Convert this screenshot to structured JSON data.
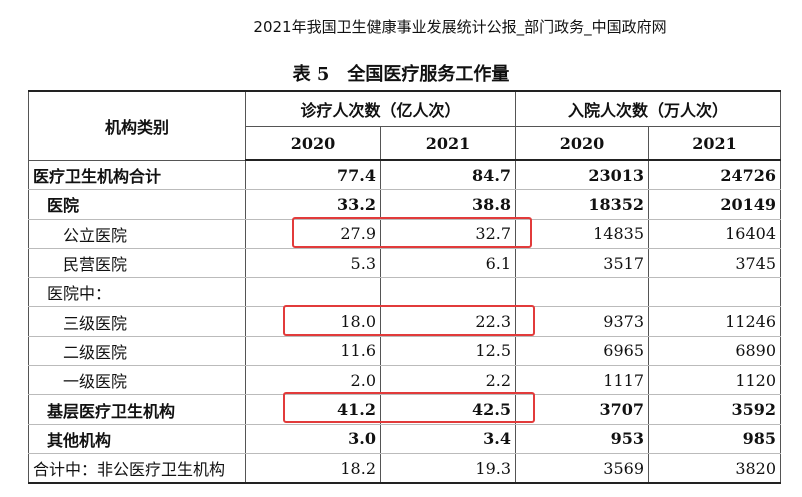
{
  "header": {
    "source": "2021年我国卫生健康事业发展统计公报_部门政务_中国政府网",
    "title": "表 5　全国医疗服务工作量"
  },
  "table": {
    "corner": "机构类别",
    "groups": [
      "诊疗人次数（亿人次）",
      "入院人次数（万人次）"
    ],
    "years": [
      "2020",
      "2021",
      "2020",
      "2021"
    ],
    "rows": [
      [
        "医疗卫生机构合计",
        "77.4",
        "84.7",
        "23013",
        "24726"
      ],
      [
        "医院",
        "33.2",
        "38.8",
        "18352",
        "20149"
      ],
      [
        "公立医院",
        "27.9",
        "32.7",
        "14835",
        "16404"
      ],
      [
        "民营医院",
        "5.3",
        "6.1",
        "3517",
        "3745"
      ],
      [
        "医院中："
      ],
      [
        "三级医院",
        "18.0",
        "22.3",
        "9373",
        "11246"
      ],
      [
        "二级医院",
        "11.6",
        "12.5",
        "6965",
        "6890"
      ],
      [
        "一级医院",
        "2.0",
        "2.2",
        "1117",
        "1120"
      ],
      [
        "基层医疗卫生机构",
        "41.2",
        "42.5",
        "3707",
        "3592"
      ],
      [
        "其他机构",
        "3.0",
        "3.4",
        "953",
        "985"
      ],
      [
        "合计中：非公医疗卫生机构",
        "18.2",
        "19.3",
        "3569",
        "3820"
      ]
    ]
  }
}
